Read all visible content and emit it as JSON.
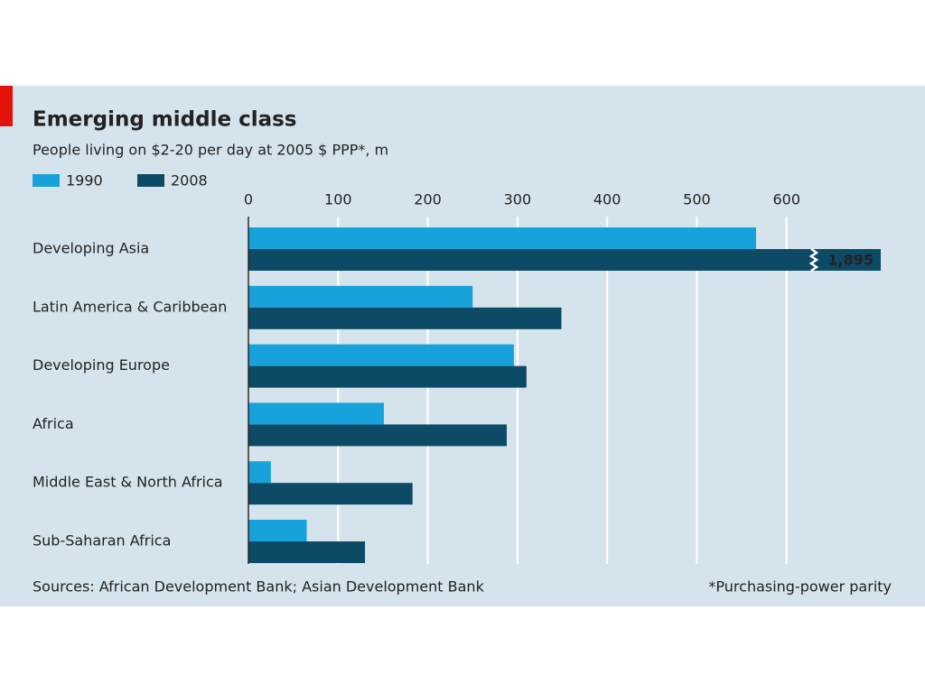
{
  "chart_data": {
    "type": "bar",
    "orientation": "horizontal",
    "title": "Emerging middle class",
    "subtitle": "People living on $2-20 per day at 2005 $ PPP*, m",
    "categories": [
      "Developing Asia",
      "Latin America & Caribbean",
      "Developing Europe",
      "Africa",
      "Middle East & North Africa",
      "Sub-Saharan Africa"
    ],
    "series": [
      {
        "name": "1990",
        "color": "#17a2dc",
        "values": [
          566,
          250,
          296,
          151,
          25,
          65
        ]
      },
      {
        "name": "2008",
        "color": "#0d4a66",
        "values": [
          1895,
          349,
          310,
          288,
          183,
          130
        ],
        "value_labels": [
          "1,895",
          null,
          null,
          null,
          null,
          null
        ]
      }
    ],
    "xlim": [
      0,
      705
    ],
    "xticks": [
      0,
      100,
      200,
      300,
      400,
      500,
      600
    ],
    "grid": true,
    "legend": "top-left",
    "source": "Sources: African Development Bank; Asian Development Bank",
    "footnote": "*Purchasing-power parity"
  }
}
